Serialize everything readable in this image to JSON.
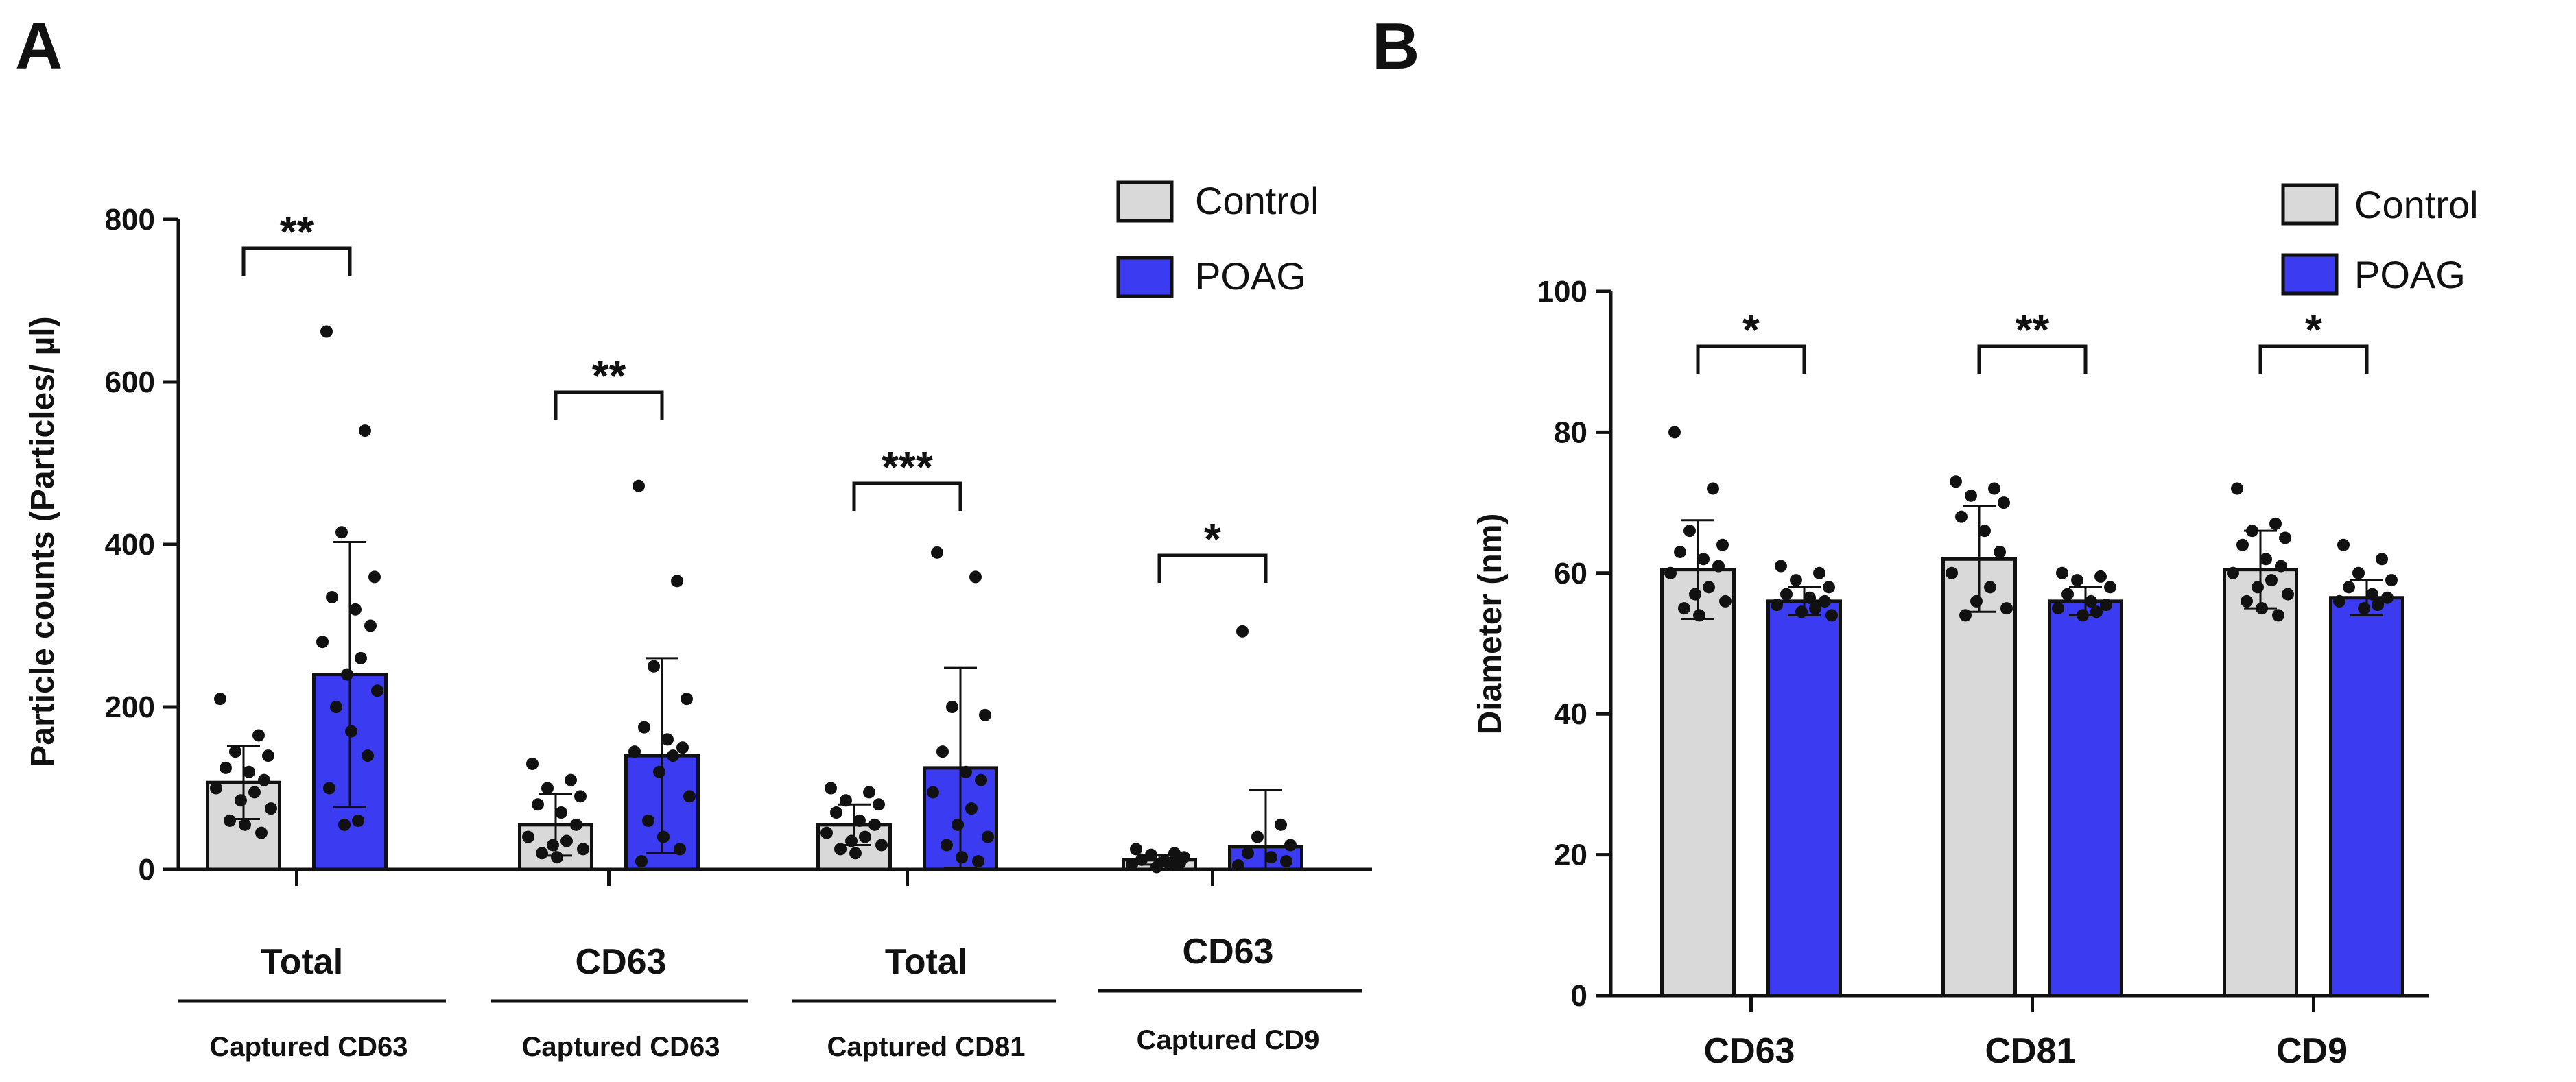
{
  "colors": {
    "control": "#d9d9d9",
    "poag": "#3b3bf2",
    "ink": "#111111"
  },
  "legend_items": [
    "Control",
    "POAG"
  ],
  "chart_data": [
    {
      "panel": "A",
      "type": "bar",
      "title": "",
      "ylabel": "Particle counts (Particles/ µl)",
      "ylim": [
        0,
        800
      ],
      "yticks": [
        0,
        200,
        400,
        600,
        800
      ],
      "legend": "top-right",
      "groups": [
        {
          "label": "Total",
          "sublabel": "Captured CD63",
          "significance": "**",
          "control": {
            "mean": 107,
            "sd": 45,
            "points": [
              210,
              165,
              145,
              140,
              125,
              120,
              110,
              100,
              95,
              85,
              75,
              60,
              55,
              45
            ]
          },
          "poag": {
            "mean": 240,
            "sd": 163,
            "points": [
              662,
              540,
              415,
              360,
              335,
              320,
              300,
              280,
              260,
              240,
              220,
              200,
              170,
              140,
              100,
              60,
              55
            ]
          }
        },
        {
          "label": "CD63",
          "sublabel": "Captured CD63",
          "significance": "**",
          "control": {
            "mean": 55,
            "sd": 38,
            "points": [
              130,
              110,
              100,
              90,
              80,
              70,
              55,
              40,
              35,
              30,
              25,
              20,
              15
            ]
          },
          "poag": {
            "mean": 140,
            "sd": 120,
            "points": [
              472,
              355,
              250,
              210,
              175,
              160,
              150,
              145,
              140,
              120,
              90,
              60,
              40,
              25,
              10
            ]
          }
        },
        {
          "label": "Total",
          "sublabel": "Captured CD81",
          "significance": "***",
          "control": {
            "mean": 55,
            "sd": 25,
            "points": [
              100,
              95,
              85,
              80,
              70,
              60,
              55,
              45,
              40,
              35,
              30,
              25,
              20
            ]
          },
          "poag": {
            "mean": 125,
            "sd": 123,
            "points": [
              390,
              360,
              200,
              190,
              145,
              120,
              110,
              95,
              75,
              55,
              40,
              30,
              15,
              10
            ]
          }
        },
        {
          "label": "CD63",
          "sublabel": "Captured CD9",
          "significance": "*",
          "control": {
            "mean": 12,
            "sd": 6,
            "points": [
              25,
              20,
              18,
              15,
              12,
              10,
              8,
              6,
              5,
              3
            ]
          },
          "poag": {
            "mean": 28,
            "sd": 70,
            "points": [
              293,
              55,
              40,
              30,
              20,
              15,
              10,
              5
            ]
          }
        }
      ]
    },
    {
      "panel": "B",
      "type": "bar",
      "title": "",
      "ylabel": "Diameter (nm)",
      "ylim": [
        0,
        100
      ],
      "yticks": [
        0,
        20,
        40,
        60,
        80,
        100
      ],
      "legend": "top-right",
      "groups": [
        {
          "label": "CD63",
          "significance": "*",
          "control": {
            "mean": 60.5,
            "sd": 7,
            "points": [
              80,
              72,
              66,
              64,
              63,
              62,
              61,
              60,
              58,
              57,
              56,
              55,
              54
            ]
          },
          "poag": {
            "mean": 56,
            "sd": 2,
            "points": [
              61,
              60,
              59,
              58,
              57,
              56.5,
              56,
              55.5,
              55,
              54.5,
              54
            ]
          }
        },
        {
          "label": "CD81",
          "significance": "**",
          "control": {
            "mean": 62,
            "sd": 7.5,
            "points": [
              73,
              72,
              71,
              70,
              68,
              66,
              63,
              60,
              58,
              56,
              55,
              54
            ]
          },
          "poag": {
            "mean": 56,
            "sd": 2,
            "points": [
              60,
              59.5,
              59,
              58,
              57,
              56,
              55.5,
              55,
              54.5,
              54
            ]
          }
        },
        {
          "label": "CD9",
          "significance": "*",
          "control": {
            "mean": 60.5,
            "sd": 5.5,
            "points": [
              72,
              67,
              66,
              65,
              64,
              62,
              61,
              60,
              59,
              58,
              57,
              56,
              55,
              54
            ]
          },
          "poag": {
            "mean": 56.5,
            "sd": 2.5,
            "points": [
              64,
              62,
              60,
              59,
              58,
              57,
              56.5,
              56,
              55.5,
              55
            ]
          }
        }
      ]
    }
  ]
}
